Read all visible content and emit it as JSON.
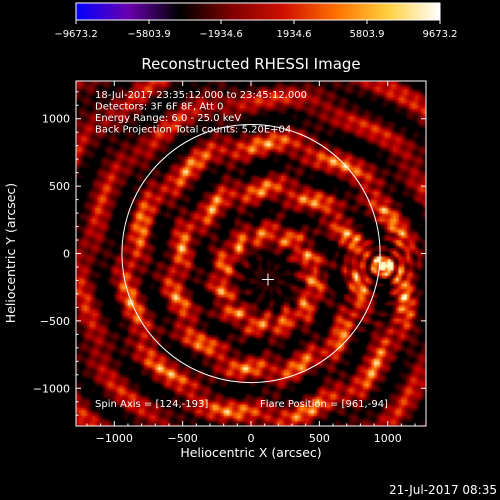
{
  "colorbar": {
    "ticks": [
      "-9673.2",
      "-5803.9",
      "-1934.6",
      "1934.6",
      "5803.9",
      "9673.2"
    ],
    "colors": [
      "#0000ff",
      "#6a00b0",
      "#000000",
      "#800000",
      "#d01000",
      "#ff7000",
      "#ffd040",
      "#ffffff"
    ]
  },
  "chart_data": {
    "type": "heatmap",
    "title": "Reconstructed RHESSI Image",
    "xlabel": "Heliocentric X (arcsec)",
    "ylabel": "Heliocentric Y (arcsec)",
    "xlim": [
      -1280,
      1280
    ],
    "ylim": [
      -1280,
      1280
    ],
    "xticks": [
      -1000,
      -500,
      0,
      500,
      1000
    ],
    "yticks": [
      -1000,
      -500,
      0,
      500,
      1000
    ],
    "xtick_labels": [
      "−1000",
      "−500",
      "0",
      "500",
      "1000"
    ],
    "ytick_labels": [
      "−1000",
      "−500",
      "0",
      "500",
      "1000"
    ],
    "info_lines": [
      "18-Jul-2017 23:35:12.000 to 23:45:12.000",
      "Detectors: 3F 6F 8F, Att 0",
      "Energy Range: 6.0 - 25.0 keV",
      "Back Projection    Total counts: 5.20E+04"
    ],
    "spin_axis_text": "Spin Axis = [124,-193]",
    "flare_position_text": "Flare Position = [961,-94]",
    "spin_axis": [
      124,
      -193
    ],
    "flare_position": [
      961,
      -94
    ],
    "solar_limb_radius": 944,
    "color_scale": [
      -9673.2,
      9673.2
    ]
  },
  "footer": {
    "timestamp": "21-Jul-2017 08:35"
  }
}
